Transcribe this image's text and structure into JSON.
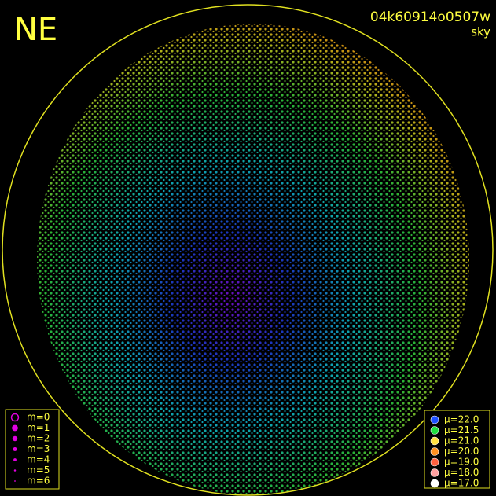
{
  "header": {
    "corner": "NE",
    "frame_id": "04k60914o0507w",
    "subtitle": "sky"
  },
  "magnitude_legend": {
    "items": [
      "m=0",
      "m=1",
      "m=2",
      "m=3",
      "m=4",
      "m=5",
      "m=6"
    ],
    "color": "#e000e0"
  },
  "sky_legend": {
    "items": [
      "μ=22.0",
      "μ=21.5",
      "μ=21.0",
      "μ=20.0",
      "μ=19.0",
      "μ=18.0",
      "μ=17.0"
    ],
    "colors": [
      "#1e50ff",
      "#20e040",
      "#ffe040",
      "#ff9020",
      "#ff6040",
      "#ffa0a0",
      "#ffffff"
    ]
  }
}
